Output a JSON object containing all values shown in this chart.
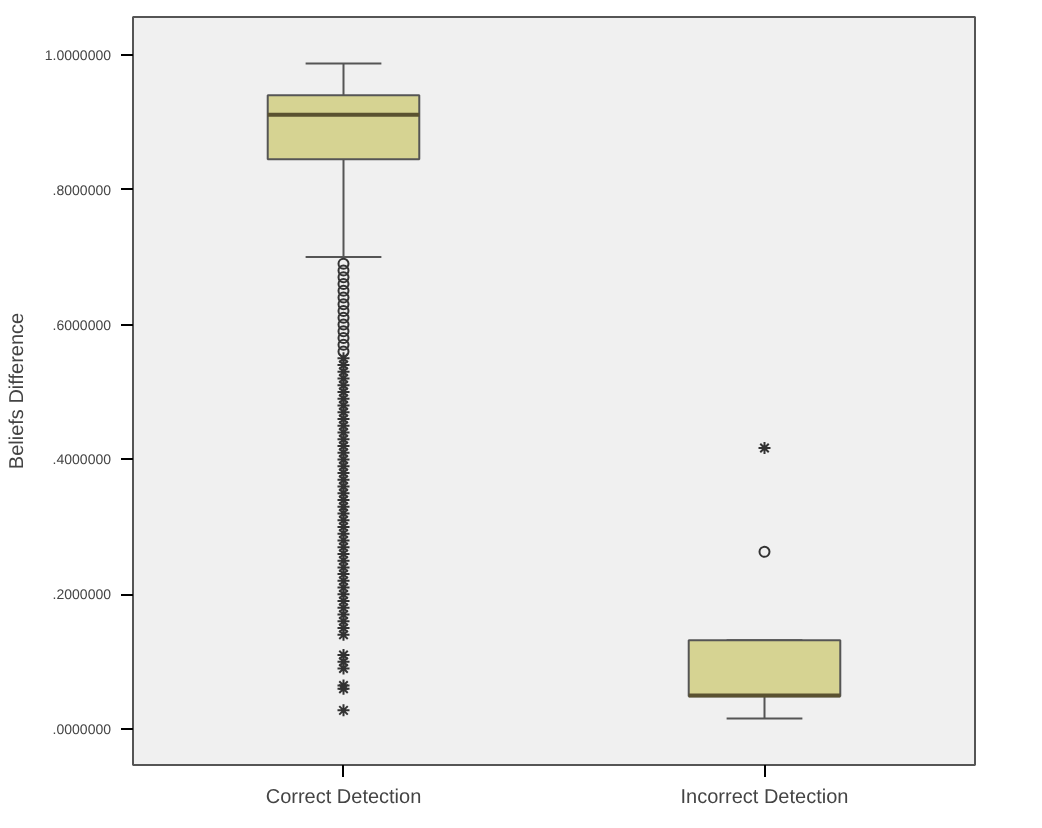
{
  "chart_data": {
    "type": "box",
    "ylabel": "Beliefs Difference",
    "categories": [
      "Correct Detection",
      "Incorrect Detection"
    ],
    "ylim": [
      -0.053,
      1.056
    ],
    "yticks": [
      {
        "value": 0,
        "label": ".0000000"
      },
      {
        "value": 0.2,
        "label": ".2000000"
      },
      {
        "value": 0.4,
        "label": ".4000000"
      },
      {
        "value": 0.6,
        "label": ".6000000"
      },
      {
        "value": 0.8,
        "label": ".8000000"
      },
      {
        "value": 1,
        "label": "1.0000000"
      }
    ],
    "grid": false,
    "color": "#d6d392",
    "boxes": [
      {
        "low": 0.7,
        "q1": 0.845,
        "median": 0.911,
        "q3": 0.94,
        "high": 0.987,
        "outliers": [
          0.69,
          0.68,
          0.67,
          0.66,
          0.65,
          0.64,
          0.63,
          0.62,
          0.61,
          0.6,
          0.59,
          0.58,
          0.57,
          0.56,
          0.55,
          0.54,
          0.53,
          0.52,
          0.51,
          0.5,
          0.49,
          0.48,
          0.47,
          0.46,
          0.45,
          0.44,
          0.43,
          0.42,
          0.41,
          0.4,
          0.39,
          0.38,
          0.37,
          0.36,
          0.35,
          0.34,
          0.33,
          0.32,
          0.31,
          0.3,
          0.29,
          0.28,
          0.27,
          0.26,
          0.25,
          0.24,
          0.23,
          0.22,
          0.21,
          0.2,
          0.19,
          0.18,
          0.17,
          0.16,
          0.15,
          0.14,
          0.11,
          0.1,
          0.09,
          0.065,
          0.06,
          0.028
        ]
      },
      {
        "low": 0.016,
        "q1": 0.049,
        "median": 0.05,
        "q3": 0.132,
        "high": 0.132,
        "outliers": [
          0.263,
          0.417
        ]
      }
    ]
  }
}
